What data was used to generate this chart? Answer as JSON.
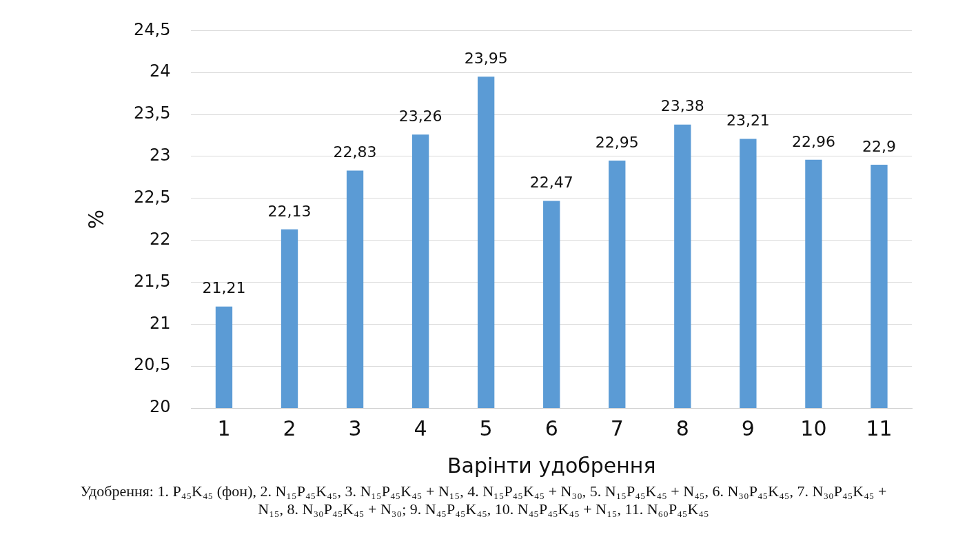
{
  "chart_data": {
    "type": "bar",
    "xlabel": "Варінти удобрення",
    "ylabel": "%",
    "categories": [
      "1",
      "2",
      "3",
      "4",
      "5",
      "6",
      "7",
      "8",
      "9",
      "10",
      "11"
    ],
    "values": [
      21.21,
      22.13,
      22.83,
      23.26,
      23.95,
      22.47,
      22.95,
      23.38,
      23.21,
      22.96,
      22.9
    ],
    "value_labels": [
      "21,21",
      "22,13",
      "22,83",
      "23,26",
      "23,95",
      "22,47",
      "22,95",
      "23,38",
      "23,21",
      "22,96",
      "22,9"
    ],
    "color": "#5b9bd5",
    "ylim": [
      20,
      24.5
    ],
    "yticks": [
      {
        "value": 20,
        "label": "20"
      },
      {
        "value": 20.5,
        "label": "20,5"
      },
      {
        "value": 21,
        "label": "21"
      },
      {
        "value": 21.5,
        "label": "21,5"
      },
      {
        "value": 22,
        "label": "22"
      },
      {
        "value": 22.5,
        "label": "22,5"
      },
      {
        "value": 23,
        "label": "23"
      },
      {
        "value": 23.5,
        "label": "23,5"
      },
      {
        "value": 24,
        "label": "24"
      },
      {
        "value": 24.5,
        "label": "24,5"
      }
    ],
    "grid": "y",
    "annotations": [
      "Удобрення: 1. P₄₅K₄₅ (фон), 2. N₁₅P₄₅K₄₅, 3. N₁₅P₄₅K₄₅ + N₁₅, 4. N₁₅P₄₅K₄₅ + N₃₀, 5. N₁₅P₄₅K₄₅ + N₄₅, 6. N₃₀P₄₅K₄₅, 7. N₃₀P₄₅K₄₅ + N₁₅, 8. N₃₀P₄₅K₄₅ + N₃₀; 9. N₄₅P₄₅K₄₅, 10. N₄₅P₄₅K₄₅ + N₁₅, 11. N₆₀P₄₅K₄₅"
    ]
  }
}
